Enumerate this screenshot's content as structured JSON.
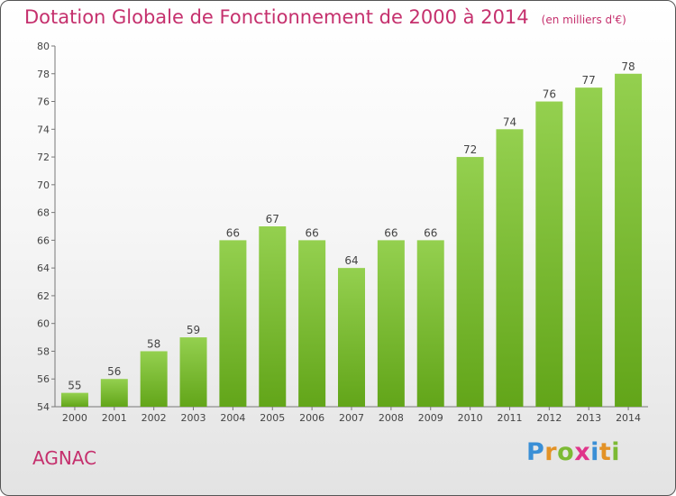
{
  "header": {
    "title": "Dotation Globale de Fonctionnement de 2000 à 2014",
    "subtitle": "(en milliers d'€)"
  },
  "footer": {
    "commune": "AGNAC",
    "logo_text": "Proxiti"
  },
  "chart_data": {
    "type": "bar",
    "categories": [
      "2000",
      "2001",
      "2002",
      "2003",
      "2004",
      "2005",
      "2006",
      "2007",
      "2008",
      "2009",
      "2010",
      "2011",
      "2012",
      "2013",
      "2014"
    ],
    "values": [
      55,
      56,
      58,
      59,
      66,
      67,
      66,
      64,
      66,
      66,
      72,
      74,
      76,
      77,
      78
    ],
    "data_labels": [
      "55",
      "56",
      "58",
      "59",
      "66",
      "67",
      "66",
      "64",
      "66",
      "66",
      "72",
      "74",
      "76",
      "77",
      "78"
    ],
    "yticks": [
      54,
      56,
      58,
      60,
      62,
      64,
      66,
      68,
      70,
      72,
      74,
      76,
      78,
      80
    ],
    "ylim": [
      54,
      80
    ],
    "grid": false,
    "legend": "none",
    "bar_color_top": "#94d04f",
    "bar_color_bottom": "#62a519",
    "title_color": "#c5306d"
  }
}
